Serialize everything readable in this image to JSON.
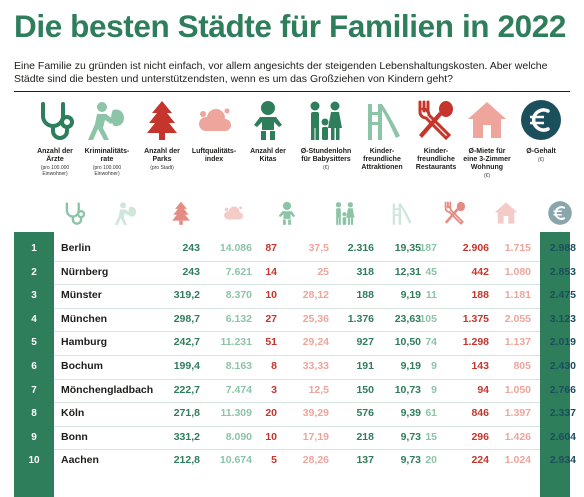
{
  "title": "Die besten Städte für Familien in 2022",
  "intro": "Eine Familie zu gründen ist nicht einfach, vor allem angesichts der steigenden Lebenshaltungskosten. Aber welche Städte sind die besten und unterstützendsten, wenn es um das Großziehen von Kindern geht?",
  "colors": {
    "dark_green": "#2e7d5b",
    "light_green": "#8cc4a8",
    "red": "#c6352b",
    "pink": "#eda59c",
    "navy": "#1b4f5c"
  },
  "legend": [
    {
      "icon": "stethoscope-icon",
      "label": "Anzahl der Ärzte",
      "note": "(pro 100.000 Einwohner)"
    },
    {
      "icon": "burglar-icon",
      "label": "Kriminalitäts-rate",
      "note": "(pro 100.000 Einwohner)"
    },
    {
      "icon": "tree-icon",
      "label": "Anzahl der Parks",
      "note": "(pro Stadt)"
    },
    {
      "icon": "cloud-icon",
      "label": "Luftqualitäts-index",
      "note": ""
    },
    {
      "icon": "child-icon",
      "label": "Anzahl der Kitas",
      "note": ""
    },
    {
      "icon": "family-icon",
      "label": "Ø-Stundenlohn für Babysitters",
      "note": "(€)"
    },
    {
      "icon": "slide-icon",
      "label": "Kinder-freundliche Attraktionen",
      "note": ""
    },
    {
      "icon": "cutlery-icon",
      "label": "Kinder-freundliche Restaurants",
      "note": ""
    },
    {
      "icon": "house-icon",
      "label": "Ø-Miete für eine 3-Zimmer Wohnung",
      "note": "(€)"
    },
    {
      "icon": "euro-icon",
      "label": "Ø-Gehalt",
      "note": "(€)"
    }
  ],
  "chart_data": {
    "type": "table",
    "title": "Die besten Städte für Familien in 2022",
    "columns": [
      "Anzahl der Ärzte",
      "Kriminalitätsrate",
      "Anzahl der Parks",
      "Luftqualitätsindex",
      "Anzahl der Kitas",
      "Ø-Stundenlohn für Babysitters",
      "Kinderfreundliche Attraktionen",
      "Kinderfreundliche Restaurants",
      "Ø-Miete für eine 3-Zimmer Wohnung",
      "Ø-Gehalt"
    ],
    "rows": [
      {
        "rank": "1",
        "city": "Berlin",
        "values": [
          "243",
          "14.086",
          "87",
          "37,5",
          "2.316",
          "19,35",
          "187",
          "2.906",
          "1.715",
          "2.988"
        ]
      },
      {
        "rank": "2",
        "city": "Nürnberg",
        "values": [
          "243",
          "7.621",
          "14",
          "25",
          "318",
          "12,31",
          "45",
          "442",
          "1.080",
          "2.853"
        ]
      },
      {
        "rank": "3",
        "city": "Münster",
        "values": [
          "319,2",
          "8.370",
          "10",
          "28,12",
          "188",
          "9,19",
          "11",
          "188",
          "1.181",
          "2.475"
        ]
      },
      {
        "rank": "4",
        "city": "München",
        "values": [
          "298,7",
          "6.132",
          "27",
          "25,36",
          "1.376",
          "23,63",
          "105",
          "1.375",
          "2.055",
          "3.123"
        ]
      },
      {
        "rank": "5",
        "city": "Hamburg",
        "values": [
          "242,7",
          "11.231",
          "51",
          "29,24",
          "927",
          "10,50",
          "74",
          "1.298",
          "1.137",
          "2.019"
        ]
      },
      {
        "rank": "6",
        "city": "Bochum",
        "values": [
          "199,4",
          "8.163",
          "8",
          "33,33",
          "191",
          "9,19",
          "9",
          "143",
          "805",
          "2.430"
        ]
      },
      {
        "rank": "7",
        "city": "Mönchengladbach",
        "values": [
          "222,7",
          "7.474",
          "3",
          "12,5",
          "150",
          "10,73",
          "9",
          "94",
          "1.050",
          "2.766"
        ]
      },
      {
        "rank": "8",
        "city": "Köln",
        "values": [
          "271,8",
          "11.309",
          "20",
          "39,29",
          "576",
          "9,39",
          "61",
          "846",
          "1.397",
          "2.337"
        ]
      },
      {
        "rank": "9",
        "city": "Bonn",
        "values": [
          "331,2",
          "8.090",
          "10",
          "17,19",
          "218",
          "9,73",
          "15",
          "296",
          "1.426",
          "2.604"
        ]
      },
      {
        "rank": "10",
        "city": "Aachen",
        "values": [
          "212,8",
          "10.674",
          "5",
          "28,26",
          "137",
          "9,73",
          "20",
          "224",
          "1.024",
          "2.934"
        ]
      }
    ]
  }
}
